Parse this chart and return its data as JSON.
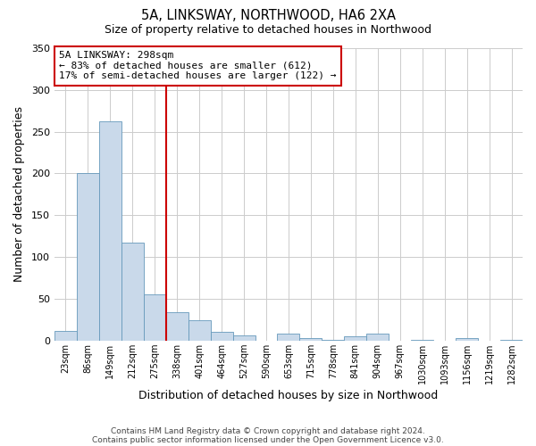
{
  "title": "5A, LINKSWAY, NORTHWOOD, HA6 2XA",
  "subtitle": "Size of property relative to detached houses in Northwood",
  "xlabel": "Distribution of detached houses by size in Northwood",
  "ylabel": "Number of detached properties",
  "bin_labels": [
    "23sqm",
    "86sqm",
    "149sqm",
    "212sqm",
    "275sqm",
    "338sqm",
    "401sqm",
    "464sqm",
    "527sqm",
    "590sqm",
    "653sqm",
    "715sqm",
    "778sqm",
    "841sqm",
    "904sqm",
    "967sqm",
    "1030sqm",
    "1093sqm",
    "1156sqm",
    "1219sqm",
    "1282sqm"
  ],
  "bar_heights": [
    12,
    200,
    262,
    117,
    55,
    34,
    24,
    10,
    6,
    0,
    8,
    3,
    1,
    5,
    8,
    0,
    1,
    0,
    3,
    0,
    1
  ],
  "bar_color": "#c9d9ea",
  "bar_edge_color": "#6699bb",
  "vline_x": 4.5,
  "vline_color": "#cc0000",
  "annotation_title": "5A LINKSWAY: 298sqm",
  "annotation_line1": "← 83% of detached houses are smaller (612)",
  "annotation_line2": "17% of semi-detached houses are larger (122) →",
  "annotation_box_color": "#cc0000",
  "ylim": [
    0,
    350
  ],
  "yticks": [
    0,
    50,
    100,
    150,
    200,
    250,
    300,
    350
  ],
  "footer1": "Contains HM Land Registry data © Crown copyright and database right 2024.",
  "footer2": "Contains public sector information licensed under the Open Government Licence v3.0.",
  "background_color": "#ffffff",
  "grid_color": "#cccccc"
}
